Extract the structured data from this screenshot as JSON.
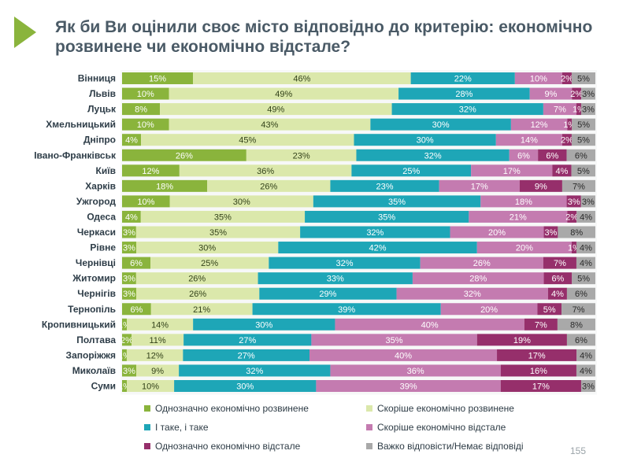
{
  "title": "Як би Ви оцінили своє місто відповідно до критерію: економічно розвинене чи економічно відстале?",
  "page_number": "155",
  "colors": {
    "accent_arrow": "#8ab43c",
    "title_text": "#4a5a66"
  },
  "chart_data": {
    "type": "bar",
    "orientation": "horizontal",
    "stacked": true,
    "stack_percent": true,
    "title": "Як би Ви оцінили своє місто відповідно до критерію: економічно розвинене чи економічно відстале?",
    "xlabel": "",
    "ylabel": "",
    "value_suffix": "%",
    "grid": false,
    "legend_position": "bottom",
    "categories": [
      "Вінниця",
      "Львів",
      "Луцьк",
      "Хмельницький",
      "Дніпро",
      "Івано-Франківськ",
      "Київ",
      "Харків",
      "Ужгород",
      "Одеса",
      "Черкаси",
      "Рівне",
      "Чернівці",
      "Житомир",
      "Чернігів",
      "Тернопіль",
      "Кропивницький",
      "Полтава",
      "Запоріжжя",
      "Миколаїв",
      "Суми"
    ],
    "series": [
      {
        "name": "Однозначно економічно розвинене",
        "color": "#8ab43c",
        "values": [
          15,
          10,
          8,
          10,
          4,
          26,
          12,
          18,
          10,
          4,
          3,
          3,
          6,
          3,
          3,
          6,
          1,
          2,
          1,
          3,
          1
        ]
      },
      {
        "name": "Скоріше економічно розвинене",
        "color": "#dbe8ab",
        "values": [
          46,
          49,
          49,
          43,
          45,
          23,
          36,
          26,
          30,
          35,
          35,
          30,
          25,
          26,
          26,
          21,
          14,
          11,
          12,
          9,
          10
        ]
      },
      {
        "name": "І таке, і таке",
        "color": "#1ea6b7",
        "values": [
          22,
          28,
          32,
          30,
          30,
          32,
          25,
          23,
          35,
          35,
          32,
          42,
          32,
          33,
          29,
          39,
          30,
          27,
          27,
          32,
          30
        ]
      },
      {
        "name": "Скоріше економічно відстале",
        "color": "#c47bb0",
        "values": [
          10,
          9,
          7,
          12,
          14,
          6,
          17,
          17,
          18,
          21,
          20,
          20,
          26,
          28,
          32,
          20,
          40,
          35,
          40,
          36,
          39
        ]
      },
      {
        "name": "Однозначно економічно відстале",
        "color": "#962f6b",
        "values": [
          2,
          2,
          1,
          1,
          2,
          6,
          4,
          9,
          3,
          2,
          3,
          1,
          7,
          6,
          4,
          5,
          7,
          19,
          17,
          16,
          17
        ]
      },
      {
        "name": "Важко відповісти/Немає відповіді",
        "color": "#a9a9a9",
        "values": [
          5,
          3,
          3,
          5,
          5,
          6,
          5,
          7,
          3,
          4,
          8,
          4,
          4,
          5,
          6,
          7,
          8,
          6,
          4,
          4,
          3
        ]
      }
    ]
  }
}
